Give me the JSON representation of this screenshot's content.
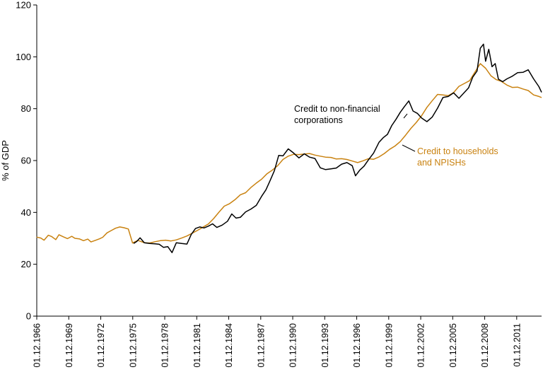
{
  "chart_data": {
    "type": "line",
    "title": "",
    "ylabel": "% of GDP",
    "xlabel": "",
    "ylim": [
      0,
      120
    ],
    "yticks": [
      0,
      20,
      40,
      60,
      80,
      100,
      120
    ],
    "xlim": [
      1966.917,
      2014.25
    ],
    "xticks": [
      {
        "value": 1966.917,
        "label": "01.12.1966"
      },
      {
        "value": 1969.917,
        "label": "01.12.1969"
      },
      {
        "value": 1972.917,
        "label": "01.12.1972"
      },
      {
        "value": 1975.917,
        "label": "01.12.1975"
      },
      {
        "value": 1978.917,
        "label": "01.12.1978"
      },
      {
        "value": 1981.917,
        "label": "01.12.1981"
      },
      {
        "value": 1984.917,
        "label": "01.12.1984"
      },
      {
        "value": 1987.917,
        "label": "01.12.1987"
      },
      {
        "value": 1990.917,
        "label": "01.12.1990"
      },
      {
        "value": 1993.917,
        "label": "01.12.1993"
      },
      {
        "value": 1996.917,
        "label": "01.12.1996"
      },
      {
        "value": 1999.917,
        "label": "01.12.1999"
      },
      {
        "value": 2002.917,
        "label": "01.12.2002"
      },
      {
        "value": 2005.917,
        "label": "01.12.2005"
      },
      {
        "value": 2008.917,
        "label": "01.12.2008"
      },
      {
        "value": 2011.917,
        "label": "01.12.2011"
      }
    ],
    "series": [
      {
        "name": "Credit to non-financial corporations",
        "color": "#000000",
        "x": [
          1976.0,
          1976.3,
          1976.6,
          1977.0,
          1977.5,
          1978.0,
          1978.4,
          1978.8,
          1979.2,
          1979.6,
          1980.0,
          1980.5,
          1981.0,
          1981.4,
          1981.8,
          1982.2,
          1982.6,
          1983.0,
          1983.4,
          1983.8,
          1984.3,
          1984.8,
          1985.2,
          1985.6,
          1986.0,
          1986.5,
          1987.0,
          1987.5,
          1988.0,
          1988.4,
          1988.8,
          1989.2,
          1989.6,
          1990.0,
          1990.5,
          1991.0,
          1991.5,
          1992.0,
          1992.5,
          1993.0,
          1993.5,
          1994.0,
          1994.5,
          1995.0,
          1995.5,
          1996.0,
          1996.5,
          1996.8,
          1997.2,
          1997.6,
          1998.0,
          1998.5,
          1999.0,
          1999.4,
          1999.8,
          2000.2,
          2000.6,
          2001.0,
          2001.4,
          2001.8,
          2002.2,
          2002.6,
          2003.0,
          2003.5,
          2004.0,
          2004.5,
          2005.0,
          2005.5,
          2006.0,
          2006.5,
          2007.0,
          2007.4,
          2007.8,
          2008.2,
          2008.5,
          2008.8,
          2009.0,
          2009.3,
          2009.6,
          2009.9,
          2010.2,
          2010.6,
          2011.0,
          2011.5,
          2012.0,
          2012.5,
          2013.0,
          2013.5,
          2014.0,
          2014.25
        ],
        "values": [
          28.0,
          28.8,
          30.2,
          28.3,
          28.0,
          27.9,
          27.7,
          26.5,
          26.8,
          24.5,
          28.3,
          28.0,
          27.8,
          31.5,
          33.8,
          34.4,
          34.0,
          34.7,
          35.6,
          34.2,
          35.1,
          36.6,
          39.4,
          37.8,
          38.1,
          40.2,
          41.3,
          42.7,
          46.2,
          48.7,
          52.3,
          56.1,
          62.0,
          61.8,
          64.5,
          62.9,
          61.0,
          62.6,
          61.3,
          60.8,
          57.2,
          56.5,
          56.8,
          57.1,
          58.6,
          59.2,
          58.0,
          54.1,
          56.3,
          57.8,
          60.2,
          62.9,
          67.0,
          68.8,
          70.1,
          73.5,
          75.9,
          78.6,
          80.9,
          83.0,
          79.1,
          78.2,
          76.4,
          75.0,
          76.8,
          80.2,
          84.3,
          84.7,
          86.1,
          84.0,
          86.2,
          88.0,
          92.2,
          94.5,
          103.3,
          104.9,
          98.3,
          102.9,
          96.2,
          97.4,
          91.4,
          90.4,
          91.5,
          92.5,
          93.9,
          94.0,
          95.0,
          91.5,
          88.5,
          86.3
        ]
      },
      {
        "name": "Credit to households and NPISHs",
        "color": "#c98210",
        "x": [
          1966.9,
          1967.3,
          1967.6,
          1968.0,
          1968.3,
          1968.7,
          1969.0,
          1969.4,
          1969.8,
          1970.2,
          1970.5,
          1970.9,
          1971.3,
          1971.7,
          1972.0,
          1972.4,
          1972.8,
          1973.1,
          1973.5,
          1973.9,
          1974.3,
          1974.7,
          1975.1,
          1975.5,
          1975.9,
          1976.4,
          1977.0,
          1977.5,
          1978.0,
          1978.5,
          1979.0,
          1979.5,
          1980.0,
          1980.5,
          1981.0,
          1981.5,
          1982.0,
          1982.5,
          1983.0,
          1983.5,
          1984.0,
          1984.5,
          1985.0,
          1985.5,
          1986.0,
          1986.5,
          1987.0,
          1987.5,
          1988.0,
          1988.5,
          1989.0,
          1989.5,
          1990.0,
          1990.5,
          1991.0,
          1991.5,
          1992.0,
          1992.5,
          1993.0,
          1993.5,
          1994.0,
          1994.5,
          1995.0,
          1995.5,
          1996.0,
          1996.5,
          1997.0,
          1997.5,
          1998.0,
          1998.5,
          1999.0,
          1999.5,
          2000.0,
          2000.5,
          2001.0,
          2001.5,
          2002.0,
          2002.5,
          2003.0,
          2003.5,
          2004.0,
          2004.5,
          2005.0,
          2005.5,
          2006.0,
          2006.5,
          2007.0,
          2007.5,
          2008.0,
          2008.5,
          2009.0,
          2009.5,
          2010.0,
          2010.5,
          2011.0,
          2011.5,
          2012.0,
          2012.5,
          2013.0,
          2013.5,
          2014.0,
          2014.25
        ],
        "values": [
          30.5,
          30.1,
          29.3,
          31.2,
          30.7,
          29.5,
          31.4,
          30.6,
          29.9,
          30.8,
          30.0,
          29.8,
          29.1,
          29.7,
          28.6,
          29.2,
          29.8,
          30.4,
          32.1,
          33.0,
          33.9,
          34.4,
          34.1,
          33.6,
          28.2,
          29.2,
          28.3,
          28.2,
          28.7,
          29.1,
          29.3,
          29.0,
          29.4,
          30.1,
          30.9,
          32.0,
          33.1,
          34.3,
          35.5,
          37.6,
          40.1,
          42.4,
          43.4,
          44.9,
          46.8,
          47.6,
          49.6,
          51.3,
          52.8,
          54.9,
          56.3,
          58.0,
          60.4,
          61.7,
          62.4,
          62.3,
          62.5,
          62.7,
          62.1,
          61.7,
          61.3,
          61.2,
          60.6,
          60.7,
          60.4,
          59.8,
          59.2,
          59.9,
          60.7,
          60.5,
          61.4,
          62.7,
          64.3,
          65.6,
          67.3,
          69.8,
          72.4,
          74.7,
          77.3,
          80.5,
          83.1,
          85.5,
          85.3,
          85.0,
          86.2,
          88.6,
          89.7,
          90.8,
          94.1,
          97.4,
          95.6,
          92.7,
          91.2,
          90.5,
          89.1,
          88.2,
          88.3,
          87.6,
          87.0,
          85.3,
          84.7,
          84.3
        ]
      }
    ],
    "annotations": [
      {
        "series": 0,
        "lines": [
          "Credit to non-financial",
          "corporations"
        ]
      },
      {
        "series": 1,
        "lines": [
          "Credit to households",
          "and NPISHs"
        ]
      }
    ]
  }
}
